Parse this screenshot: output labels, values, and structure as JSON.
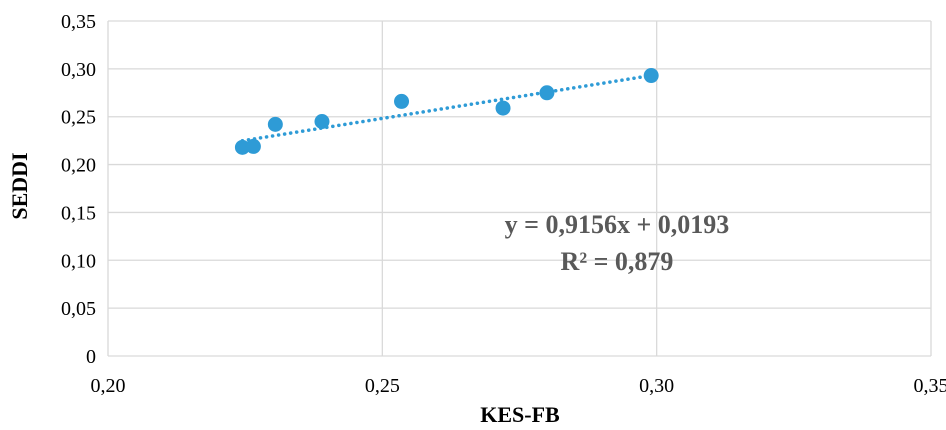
{
  "chart_data": {
    "type": "scatter",
    "title": "",
    "xlabel": "KES-FB",
    "ylabel": "SEDDI",
    "xlim": [
      0.2,
      0.35
    ],
    "ylim": [
      0,
      0.35
    ],
    "x_ticks": [
      "0,20",
      "0,25",
      "0,30",
      "0,35"
    ],
    "y_ticks": [
      "0",
      "0,05",
      "0,10",
      "0,15",
      "0,20",
      "0,25",
      "0,30",
      "0,35"
    ],
    "grid": true,
    "series": [
      {
        "x": [
          0.2245,
          0.2265,
          0.2305,
          0.239,
          0.2535,
          0.272,
          0.28,
          0.299
        ],
        "y": [
          0.218,
          0.219,
          0.242,
          0.245,
          0.266,
          0.259,
          0.275,
          0.293
        ]
      }
    ],
    "trendline": {
      "type": "linear",
      "slope": 0.9156,
      "intercept": 0.0193,
      "style": "dotted",
      "equation": "y = 0,9156x + 0,0193",
      "r_squared": "R² = 0,879"
    },
    "colors": {
      "marker": "#2e9bd6",
      "trendline": "#2e9bd6",
      "grid": "#d9d9d9",
      "annotation": "#595959"
    }
  }
}
